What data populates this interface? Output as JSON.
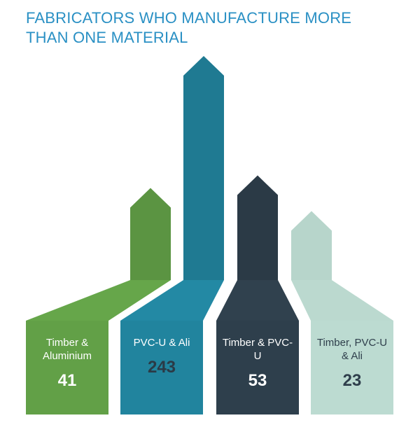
{
  "chart_data": {
    "type": "arrow",
    "title": "FABRICATORS WHO MANUFACTURE MORE THAN ONE MATERIAL",
    "categories": [
      "Timber & Aluminium",
      "PVC-U & Ali",
      "Timber & PVC-U",
      "Timber, PVC-U & Ali"
    ],
    "values": [
      41,
      243,
      53,
      23
    ],
    "colors": [
      "#5b9442",
      "#1f7a92",
      "#2b3a46",
      "#b7d5cb"
    ]
  }
}
